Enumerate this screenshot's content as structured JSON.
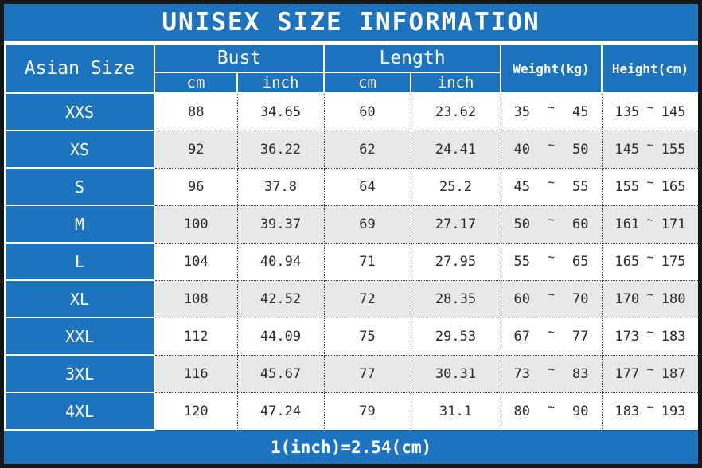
{
  "accent_color": "#1e73be",
  "stripe_color": "#e8e8e8",
  "frame_color": "#161616",
  "title": "UNISEX SIZE INFORMATION",
  "footer_note": "1(inch)=2.54(cm)",
  "tilde": "~",
  "table": {
    "col_size": "Asian Size",
    "col_bust": "Bust",
    "col_length": "Length",
    "col_weight": "Weight(kg)",
    "col_height": "Height(cm)",
    "sub_cm": "cm",
    "sub_inch": "inch",
    "rows": [
      {
        "size": "XXS",
        "bust_cm": "88",
        "bust_inch": "34.65",
        "length_cm": "60",
        "length_inch": "23.62",
        "weight_min": "35",
        "weight_max": "45",
        "height_min": "135",
        "height_max": "145"
      },
      {
        "size": "XS",
        "bust_cm": "92",
        "bust_inch": "36.22",
        "length_cm": "62",
        "length_inch": "24.41",
        "weight_min": "40",
        "weight_max": "50",
        "height_min": "145",
        "height_max": "155"
      },
      {
        "size": "S",
        "bust_cm": "96",
        "bust_inch": "37.8",
        "length_cm": "64",
        "length_inch": "25.2",
        "weight_min": "45",
        "weight_max": "55",
        "height_min": "155",
        "height_max": "165"
      },
      {
        "size": "M",
        "bust_cm": "100",
        "bust_inch": "39.37",
        "length_cm": "69",
        "length_inch": "27.17",
        "weight_min": "50",
        "weight_max": "60",
        "height_min": "161",
        "height_max": "171"
      },
      {
        "size": "L",
        "bust_cm": "104",
        "bust_inch": "40.94",
        "length_cm": "71",
        "length_inch": "27.95",
        "weight_min": "55",
        "weight_max": "65",
        "height_min": "165",
        "height_max": "175"
      },
      {
        "size": "XL",
        "bust_cm": "108",
        "bust_inch": "42.52",
        "length_cm": "72",
        "length_inch": "28.35",
        "weight_min": "60",
        "weight_max": "70",
        "height_min": "170",
        "height_max": "180"
      },
      {
        "size": "XXL",
        "bust_cm": "112",
        "bust_inch": "44.09",
        "length_cm": "75",
        "length_inch": "29.53",
        "weight_min": "67",
        "weight_max": "77",
        "height_min": "173",
        "height_max": "183"
      },
      {
        "size": "3XL",
        "bust_cm": "116",
        "bust_inch": "45.67",
        "length_cm": "77",
        "length_inch": "30.31",
        "weight_min": "73",
        "weight_max": "83",
        "height_min": "177",
        "height_max": "187"
      },
      {
        "size": "4XL",
        "bust_cm": "120",
        "bust_inch": "47.24",
        "length_cm": "79",
        "length_inch": "31.1",
        "weight_min": "80",
        "weight_max": "90",
        "height_min": "183",
        "height_max": "193"
      }
    ]
  },
  "chart_data": {
    "type": "table",
    "title": "UNISEX SIZE INFORMATION",
    "columns": [
      "Asian Size",
      "Bust cm",
      "Bust inch",
      "Length cm",
      "Length inch",
      "Weight(kg)",
      "Height(cm)"
    ],
    "rows": [
      [
        "XXS",
        88,
        34.65,
        60,
        23.62,
        "35~45",
        "135~145"
      ],
      [
        "XS",
        92,
        36.22,
        62,
        24.41,
        "40~50",
        "145~155"
      ],
      [
        "S",
        96,
        37.8,
        64,
        25.2,
        "45~55",
        "155~165"
      ],
      [
        "M",
        100,
        39.37,
        69,
        27.17,
        "50~60",
        "161~171"
      ],
      [
        "L",
        104,
        40.94,
        71,
        27.95,
        "55~65",
        "165~175"
      ],
      [
        "XL",
        108,
        42.52,
        72,
        28.35,
        "60~70",
        "170~180"
      ],
      [
        "XXL",
        112,
        44.09,
        75,
        29.53,
        "67~77",
        "173~183"
      ],
      [
        "3XL",
        116,
        45.67,
        77,
        30.31,
        "73~83",
        "177~187"
      ],
      [
        "4XL",
        120,
        47.24,
        79,
        31.1,
        "80~90",
        "183~193"
      ]
    ],
    "note": "1(inch)=2.54(cm)",
    "layout": {
      "striped_rows": true,
      "header_color": "#1e73be",
      "grid": "dotted"
    }
  }
}
